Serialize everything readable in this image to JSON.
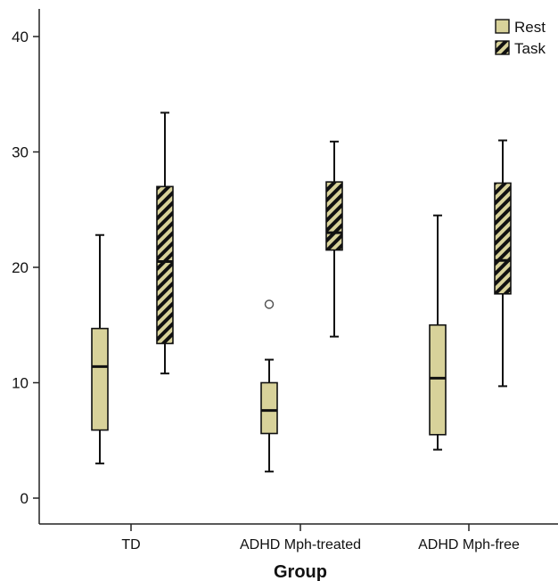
{
  "chart_data": {
    "type": "box",
    "title": "",
    "xlabel": "Group",
    "ylabel": "",
    "ylim": [
      -2,
      42
    ],
    "yticks": [
      0,
      10,
      20,
      30,
      40
    ],
    "categories": [
      "TD",
      "ADHD Mph-treated",
      "ADHD Mph-free"
    ],
    "legend": {
      "position": "top-right"
    },
    "series": [
      {
        "name": "Rest",
        "color": "#d8d29a",
        "pattern": "solid",
        "boxes": [
          {
            "min": 3.0,
            "q1": 5.9,
            "median": 11.4,
            "q3": 14.7,
            "max": 22.8,
            "outliers": []
          },
          {
            "min": 2.3,
            "q1": 5.6,
            "median": 7.6,
            "q3": 10.0,
            "max": 12.0,
            "outliers": [
              16.8
            ]
          },
          {
            "min": 4.2,
            "q1": 5.5,
            "median": 10.4,
            "q3": 15.0,
            "max": 24.5,
            "outliers": []
          }
        ]
      },
      {
        "name": "Task",
        "color": "#d8d29a",
        "pattern": "diagonal-hatch",
        "boxes": [
          {
            "min": 10.8,
            "q1": 13.4,
            "median": 20.5,
            "q3": 27.0,
            "max": 33.4,
            "outliers": []
          },
          {
            "min": 14.0,
            "q1": 21.5,
            "median": 23.0,
            "q3": 27.4,
            "max": 30.9,
            "outliers": []
          },
          {
            "min": 9.7,
            "q1": 17.7,
            "median": 20.6,
            "q3": 27.3,
            "max": 31.0,
            "outliers": []
          }
        ]
      }
    ]
  }
}
